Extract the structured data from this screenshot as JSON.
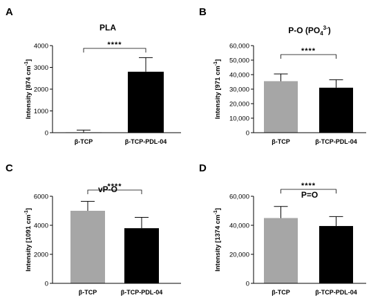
{
  "chart_data": [
    {
      "panel": "A",
      "type": "bar",
      "title": "PLA",
      "title_sup": "",
      "title_suffix": "",
      "ylabel": "Intensity [874 cm",
      "ylabel_sup": "-1",
      "ylabel_suffix": "]",
      "categories": [
        "β-TCP",
        "β-TCP-PDL-04"
      ],
      "values": [
        20,
        2800
      ],
      "errors": [
        100,
        650
      ],
      "bar_colors": [
        "#a6a6a6",
        "#000000"
      ],
      "ylim": [
        0,
        4000
      ],
      "yticks": [
        0,
        1000,
        2000,
        3000,
        4000
      ],
      "ytick_labels": [
        "0",
        "1000",
        "2000",
        "3000",
        "4000"
      ],
      "significance": "****"
    },
    {
      "panel": "B",
      "type": "bar",
      "title": "P-O (PO",
      "title_sub": "4",
      "title_sup": "3-",
      "title_suffix": ")",
      "ylabel": "Intensity [971 cm",
      "ylabel_sup": "-1",
      "ylabel_suffix": "]",
      "categories": [
        "β-TCP",
        "β-TCP-PDL-04"
      ],
      "values": [
        35500,
        31000
      ],
      "errors": [
        5000,
        5500
      ],
      "bar_colors": [
        "#a6a6a6",
        "#000000"
      ],
      "ylim": [
        0,
        60000
      ],
      "yticks": [
        0,
        10000,
        20000,
        30000,
        40000,
        50000,
        60000
      ],
      "ytick_labels": [
        "0",
        "10,000",
        "20,000",
        "30,000",
        "40,000",
        "50,000",
        "60,000"
      ],
      "significance": "****"
    },
    {
      "panel": "C",
      "type": "bar",
      "title": "vP-O",
      "title_sup": "",
      "title_suffix": "",
      "ylabel": "Intensity [1091 cm",
      "ylabel_sup": "-1",
      "ylabel_suffix": "]",
      "categories": [
        "β-TCP",
        "β-TCP-PDL-04"
      ],
      "values": [
        5000,
        3800
      ],
      "errors": [
        650,
        750
      ],
      "bar_colors": [
        "#a6a6a6",
        "#000000"
      ],
      "ylim": [
        0,
        6000
      ],
      "yticks": [
        0,
        2000,
        4000,
        6000
      ],
      "ytick_labels": [
        "0",
        "2000",
        "4000",
        "6000"
      ],
      "significance": "****"
    },
    {
      "panel": "D",
      "type": "bar",
      "title": "P=O",
      "title_sup": "",
      "title_suffix": "",
      "ylabel": "Intensity [1374 cm",
      "ylabel_sup": "-1",
      "ylabel_suffix": "]",
      "categories": [
        "β-TCP",
        "β-TCP-PDL-04"
      ],
      "values": [
        45000,
        39500
      ],
      "errors": [
        8000,
        6500
      ],
      "bar_colors": [
        "#a6a6a6",
        "#000000"
      ],
      "ylim": [
        0,
        60000
      ],
      "yticks": [
        0,
        20000,
        40000,
        60000
      ],
      "ytick_labels": [
        "0",
        "20,000",
        "40,000",
        "60,000"
      ],
      "significance": "****"
    }
  ]
}
